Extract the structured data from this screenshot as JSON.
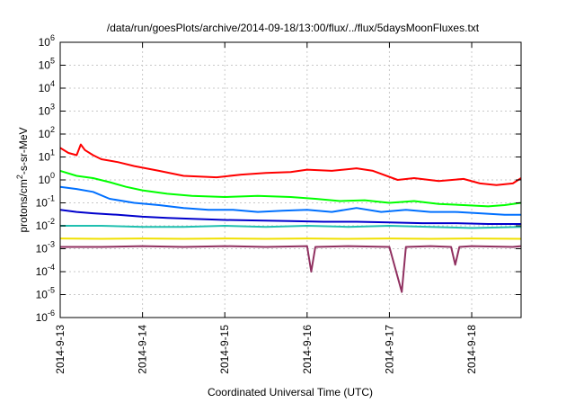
{
  "chart_data": {
    "type": "line",
    "title": "/data/run/goesPlots/archive/2014-09-18/13:00/flux/../flux/5daysMoonFluxes.txt",
    "xlabel": "Coordinated Universal Time (UTC)",
    "ylabel": {
      "base": "protons/cm",
      "sup": "2",
      "rest": "-s-sr-MeV"
    },
    "yscale": "log",
    "ylim": [
      1e-06,
      1000000.0
    ],
    "xlim": [
      0,
      5.6
    ],
    "x_unit": "days since 2014-09-13 00:00",
    "grid": true,
    "x_ticks": [
      {
        "value": 0,
        "label": "2014-9-13"
      },
      {
        "value": 1,
        "label": "2014-9-14"
      },
      {
        "value": 2,
        "label": "2014-9-15"
      },
      {
        "value": 3,
        "label": "2014-9-16"
      },
      {
        "value": 4,
        "label": "2014-9-17"
      },
      {
        "value": 5,
        "label": "2014-9-18"
      }
    ],
    "y_ticks": [
      {
        "exp": "-6"
      },
      {
        "exp": "-5"
      },
      {
        "exp": "-4"
      },
      {
        "exp": "-3"
      },
      {
        "exp": "-2"
      },
      {
        "exp": "-1"
      },
      {
        "exp": "0"
      },
      {
        "exp": "1"
      },
      {
        "exp": "2"
      },
      {
        "exp": "3"
      },
      {
        "exp": "4"
      },
      {
        "exp": "5"
      },
      {
        "exp": "6"
      }
    ],
    "y_tick_base": "10",
    "series": [
      {
        "color": "#ff0000",
        "x": [
          0,
          0.1,
          0.2,
          0.25,
          0.3,
          0.4,
          0.5,
          0.7,
          0.9,
          1.2,
          1.5,
          1.9,
          2.2,
          2.5,
          2.8,
          3.0,
          3.3,
          3.6,
          3.8,
          4.1,
          4.3,
          4.6,
          4.9,
          5.1,
          5.3,
          5.5,
          5.6
        ],
        "y": [
          25,
          15,
          12,
          35,
          20,
          12,
          8,
          6,
          4,
          2.5,
          1.5,
          1.3,
          1.7,
          2.0,
          2.2,
          2.8,
          2.5,
          3.2,
          2.5,
          1.0,
          1.2,
          0.9,
          1.1,
          0.7,
          0.6,
          0.7,
          1.2
        ]
      },
      {
        "color": "#00ff00",
        "x": [
          0,
          0.2,
          0.4,
          0.6,
          0.8,
          1.0,
          1.3,
          1.6,
          2.0,
          2.4,
          2.8,
          3.1,
          3.4,
          3.7,
          4.0,
          4.3,
          4.6,
          4.9,
          5.2,
          5.4,
          5.6
        ],
        "y": [
          2.5,
          1.5,
          1.2,
          0.8,
          0.5,
          0.35,
          0.25,
          0.2,
          0.18,
          0.2,
          0.18,
          0.15,
          0.12,
          0.13,
          0.1,
          0.12,
          0.09,
          0.08,
          0.07,
          0.08,
          0.1
        ]
      },
      {
        "color": "#0070ff",
        "x": [
          0,
          0.2,
          0.4,
          0.6,
          0.9,
          1.2,
          1.5,
          1.8,
          2.1,
          2.4,
          2.7,
          3.0,
          3.3,
          3.6,
          3.9,
          4.2,
          4.5,
          4.8,
          5.1,
          5.4,
          5.6
        ],
        "y": [
          0.5,
          0.4,
          0.3,
          0.15,
          0.1,
          0.08,
          0.06,
          0.05,
          0.05,
          0.04,
          0.045,
          0.05,
          0.04,
          0.06,
          0.04,
          0.05,
          0.04,
          0.04,
          0.035,
          0.03,
          0.03
        ]
      },
      {
        "color": "#0000cc",
        "x": [
          0,
          0.2,
          0.4,
          0.7,
          1.0,
          1.3,
          1.6,
          2.0,
          2.4,
          2.8,
          3.2,
          3.6,
          4.0,
          4.4,
          4.8,
          5.2,
          5.6
        ],
        "y": [
          0.05,
          0.04,
          0.035,
          0.03,
          0.025,
          0.022,
          0.02,
          0.018,
          0.017,
          0.016,
          0.015,
          0.015,
          0.014,
          0.013,
          0.013,
          0.012,
          0.012
        ]
      },
      {
        "color": "#20c0b0",
        "x": [
          0,
          0.5,
          1.0,
          1.5,
          2.0,
          2.5,
          3.0,
          3.5,
          4.0,
          4.5,
          5.0,
          5.6
        ],
        "y": [
          0.01,
          0.01,
          0.009,
          0.009,
          0.01,
          0.009,
          0.01,
          0.009,
          0.01,
          0.009,
          0.008,
          0.009
        ]
      },
      {
        "color": "#f0e000",
        "x": [
          0,
          0.5,
          1.0,
          1.5,
          2.0,
          2.5,
          3.0,
          3.5,
          4.0,
          4.5,
          5.0,
          5.6
        ],
        "y": [
          0.0028,
          0.0027,
          0.0028,
          0.0027,
          0.0028,
          0.0027,
          0.0028,
          0.0027,
          0.0028,
          0.0027,
          0.0028,
          0.0027
        ]
      },
      {
        "color": "#903060",
        "x": [
          0,
          0.5,
          1.0,
          1.5,
          2.0,
          2.5,
          3.0,
          3.05,
          3.1,
          3.5,
          4.0,
          4.15,
          4.2,
          4.5,
          4.75,
          4.8,
          4.85,
          5.0,
          5.5,
          5.6
        ],
        "y": [
          0.0012,
          0.0012,
          0.0013,
          0.0012,
          0.0013,
          0.0012,
          0.0013,
          0.0001,
          0.0012,
          0.0013,
          0.0012,
          1.3e-05,
          0.0012,
          0.0013,
          0.0012,
          0.0002,
          0.0012,
          0.0013,
          0.0012,
          0.0013
        ]
      }
    ]
  }
}
